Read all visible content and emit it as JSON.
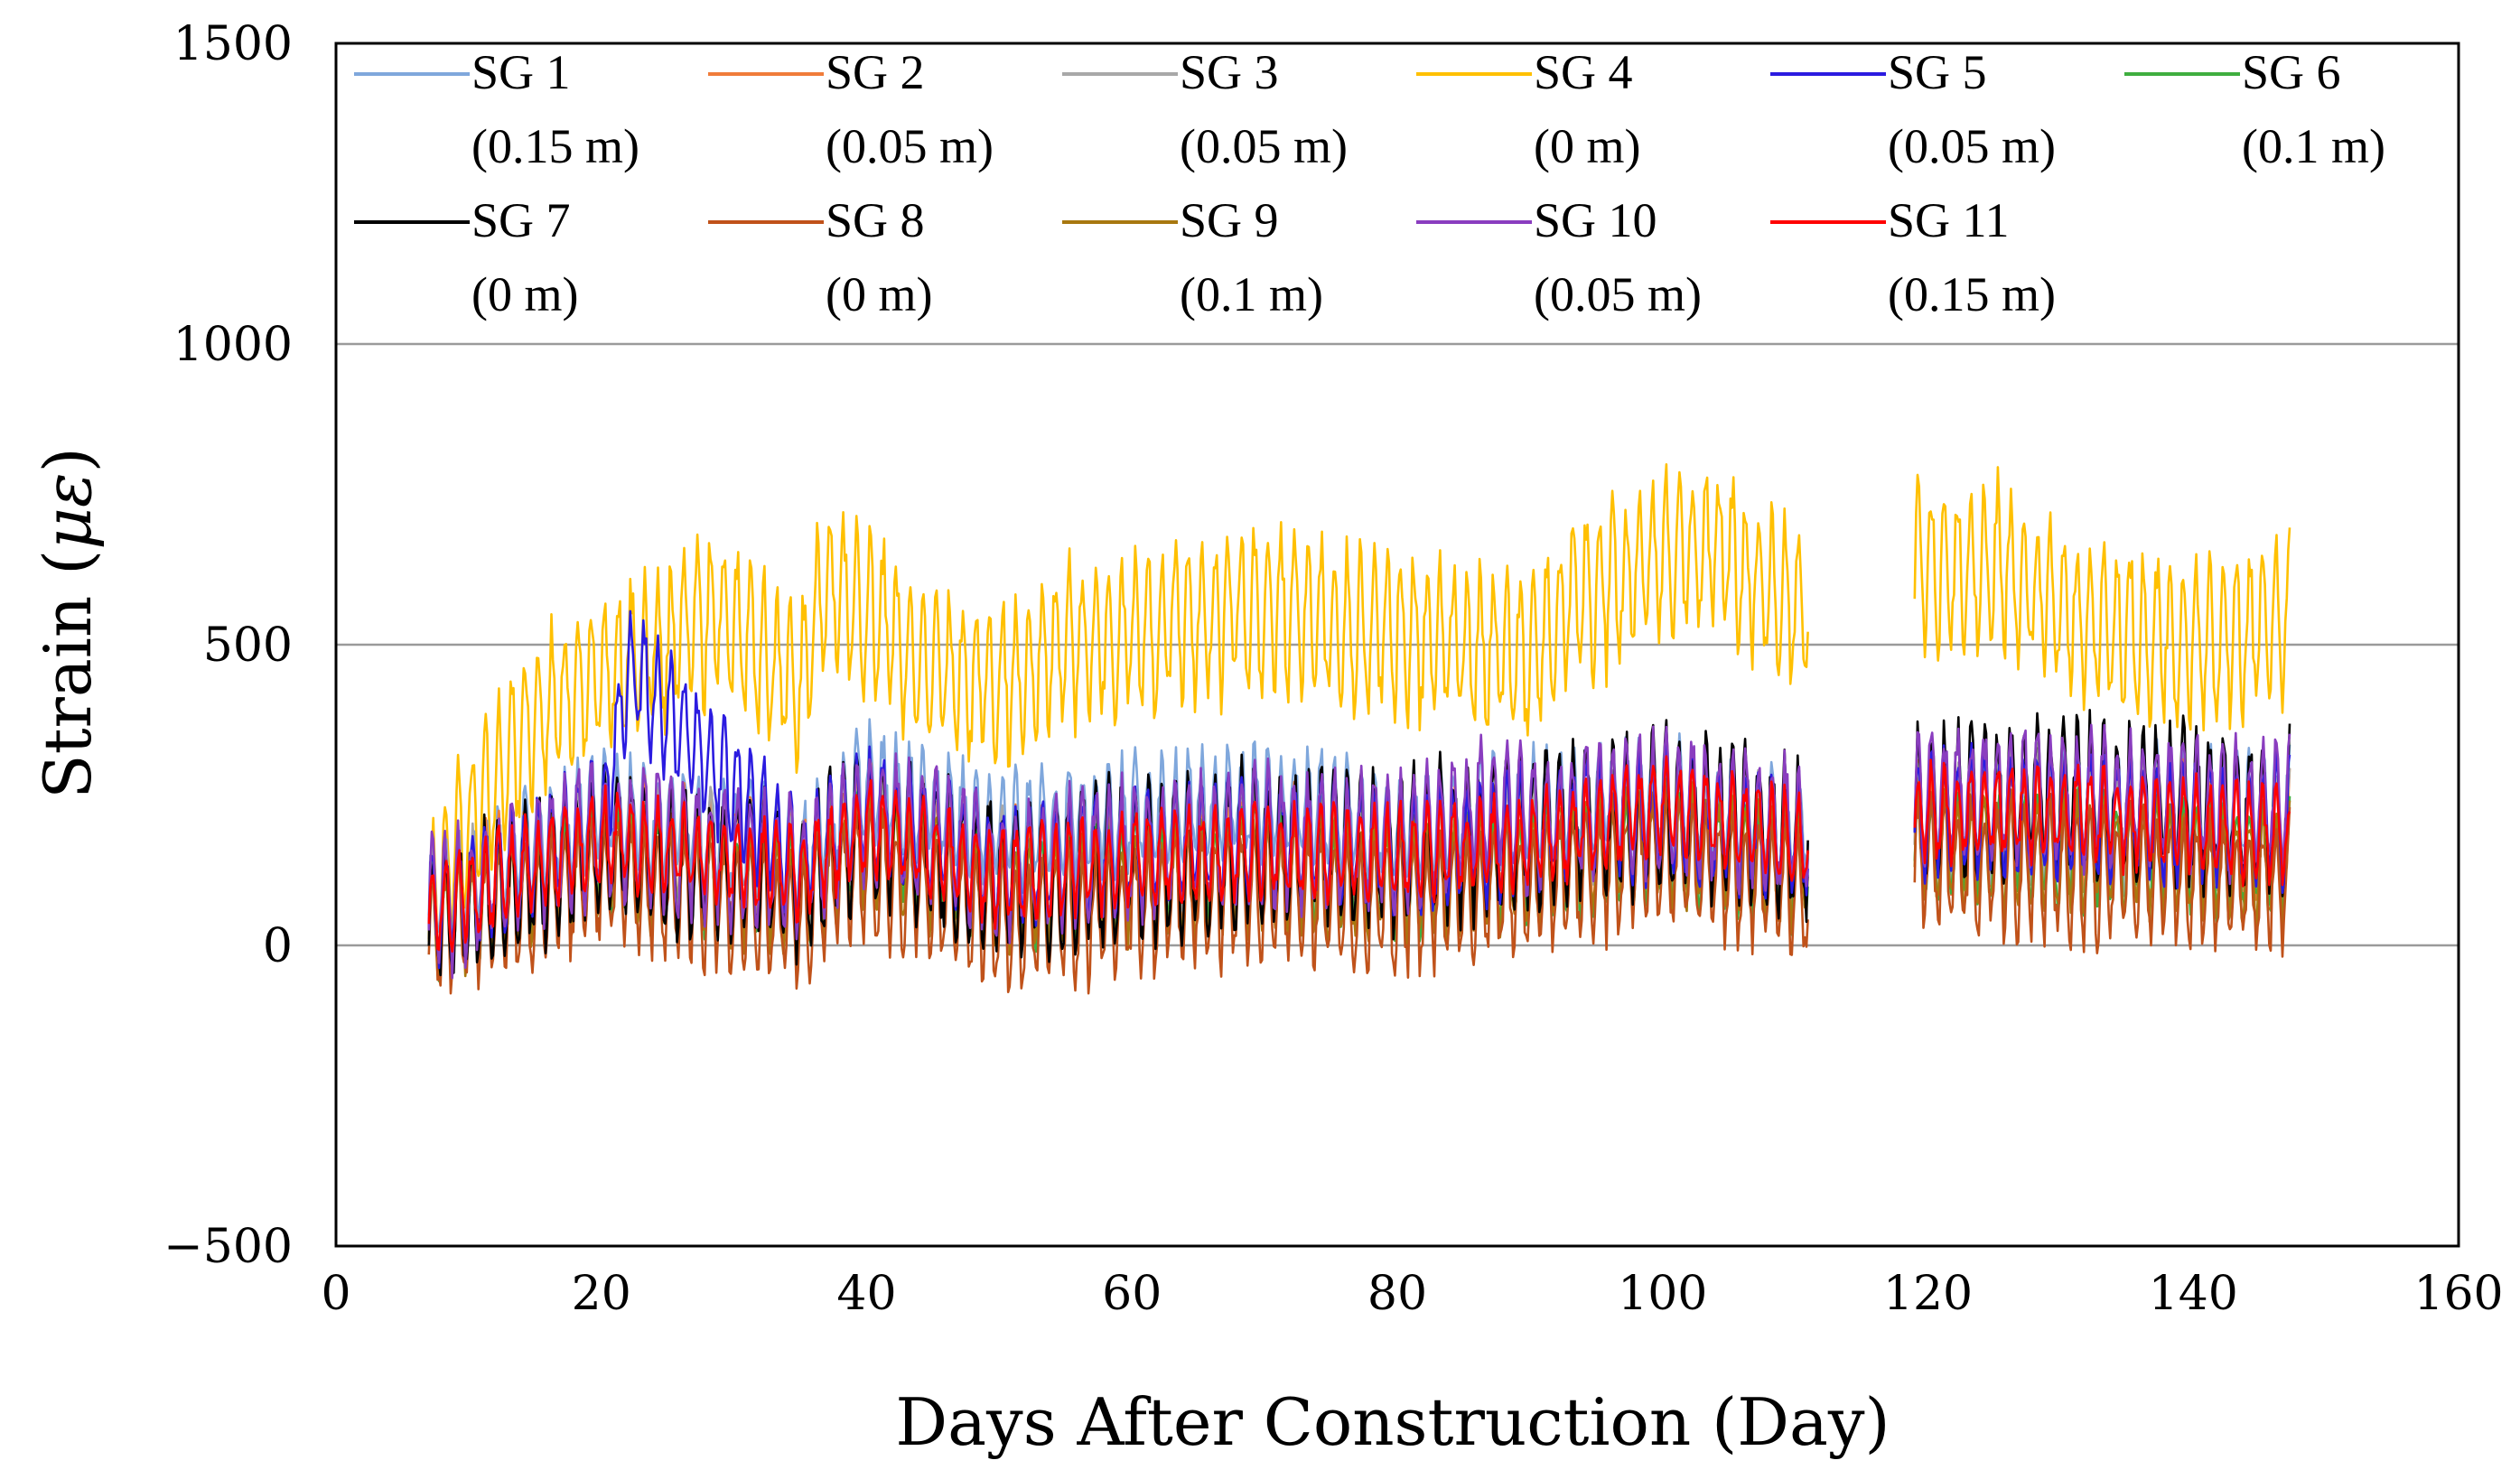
{
  "chart_data": {
    "type": "line",
    "title": "",
    "xlabel": "Days After Construction (Day)",
    "ylabel_text": "Strain (",
    "ylabel_mu": "με",
    "ylabel_close": ")",
    "xlim": [
      0,
      160
    ],
    "ylim": [
      -500,
      1500
    ],
    "xticks": [
      0,
      20,
      40,
      60,
      80,
      100,
      120,
      140,
      160
    ],
    "xtick_labels": [
      "0",
      "20",
      "40",
      "60",
      "80",
      "100",
      "120",
      "140",
      "160"
    ],
    "yticks": [
      -500,
      0,
      500,
      1000,
      1500
    ],
    "ytick_labels": [
      "−500",
      "0",
      "500",
      "1000",
      "1500"
    ],
    "gridlines_y": [
      0,
      500,
      1000
    ],
    "legend_placement": "top, inside plot, two rows",
    "data_gap": [
      111,
      119
    ],
    "series": [
      {
        "name": "SG 1",
        "depth": "(0.15 m)",
        "color": "#7fa7dc",
        "mean_range": [
          120,
          260
        ],
        "amplitude": 110,
        "values": [
          [
            7,
            80
          ],
          [
            20,
            230
          ],
          [
            35,
            150
          ],
          [
            40,
            270
          ],
          [
            50,
            190
          ],
          [
            60,
            220
          ],
          [
            70,
            240
          ],
          [
            80,
            200
          ],
          [
            90,
            230
          ],
          [
            100,
            250
          ],
          [
            111,
            200
          ],
          [
            119,
            230
          ],
          [
            130,
            240
          ],
          [
            147,
            230
          ]
        ]
      },
      {
        "name": "SG 2",
        "depth": "(0.05 m)",
        "color": "#f07c3a",
        "mean_range": [
          100,
          220
        ],
        "amplitude": 120,
        "values": [
          [
            7,
            60
          ],
          [
            20,
            180
          ],
          [
            35,
            120
          ],
          [
            40,
            200
          ],
          [
            50,
            120
          ],
          [
            60,
            140
          ],
          [
            70,
            160
          ],
          [
            80,
            150
          ],
          [
            90,
            170
          ],
          [
            100,
            200
          ],
          [
            111,
            160
          ],
          [
            119,
            200
          ],
          [
            130,
            210
          ],
          [
            147,
            180
          ]
        ]
      },
      {
        "name": "SG 3",
        "depth": "(0.05 m)",
        "color": "#a8a8a8",
        "mean_range": [
          100,
          220
        ],
        "amplitude": 120,
        "values": [
          [
            7,
            60
          ],
          [
            20,
            180
          ],
          [
            35,
            120
          ],
          [
            40,
            200
          ],
          [
            50,
            120
          ],
          [
            60,
            140
          ],
          [
            70,
            160
          ],
          [
            80,
            150
          ],
          [
            90,
            170
          ],
          [
            100,
            200
          ],
          [
            111,
            160
          ],
          [
            119,
            200
          ],
          [
            130,
            210
          ],
          [
            147,
            180
          ]
        ]
      },
      {
        "name": "SG 4",
        "depth": "(0 m)",
        "color": "#ffc000",
        "mean_range": [
          300,
          620
        ],
        "amplitude": 160,
        "values": [
          [
            7,
            50
          ],
          [
            10,
            200
          ],
          [
            15,
            380
          ],
          [
            20,
            450
          ],
          [
            25,
            500
          ],
          [
            29,
            560
          ],
          [
            32,
            480
          ],
          [
            35,
            440
          ],
          [
            37,
            600
          ],
          [
            40,
            560
          ],
          [
            45,
            450
          ],
          [
            50,
            430
          ],
          [
            55,
            500
          ],
          [
            60,
            520
          ],
          [
            65,
            540
          ],
          [
            70,
            560
          ],
          [
            75,
            540
          ],
          [
            80,
            520
          ],
          [
            85,
            500
          ],
          [
            90,
            480
          ],
          [
            93,
            560
          ],
          [
            100,
            640
          ],
          [
            104,
            660
          ],
          [
            111,
            540
          ],
          [
            119,
            620
          ],
          [
            125,
            640
          ],
          [
            130,
            560
          ],
          [
            140,
            500
          ],
          [
            147,
            540
          ]
        ]
      },
      {
        "name": "SG 5",
        "depth": "(0.05 m)",
        "color": "#2b1be0",
        "mean_range": [
          100,
          240
        ],
        "amplitude": 120,
        "values": [
          [
            7,
            60
          ],
          [
            20,
            200
          ],
          [
            22,
            460
          ],
          [
            35,
            130
          ],
          [
            40,
            230
          ],
          [
            50,
            130
          ],
          [
            60,
            160
          ],
          [
            70,
            180
          ],
          [
            80,
            160
          ],
          [
            90,
            190
          ],
          [
            100,
            220
          ],
          [
            111,
            180
          ],
          [
            119,
            220
          ],
          [
            130,
            220
          ],
          [
            147,
            200
          ]
        ]
      },
      {
        "name": "SG 6",
        "depth": "(0.1 m)",
        "color": "#3fae3f",
        "mean_range": [
          60,
          200
        ],
        "amplitude": 110,
        "values": [
          [
            7,
            40
          ],
          [
            20,
            150
          ],
          [
            35,
            90
          ],
          [
            40,
            170
          ],
          [
            50,
            90
          ],
          [
            60,
            110
          ],
          [
            70,
            130
          ],
          [
            80,
            110
          ],
          [
            90,
            130
          ],
          [
            100,
            170
          ],
          [
            111,
            120
          ],
          [
            119,
            170
          ],
          [
            130,
            160
          ],
          [
            147,
            140
          ]
        ]
      },
      {
        "name": "SG 7",
        "depth": "(0 m)",
        "color": "#000000",
        "mean_range": [
          80,
          260
        ],
        "amplitude": 150,
        "values": [
          [
            7,
            40
          ],
          [
            20,
            170
          ],
          [
            35,
            110
          ],
          [
            40,
            210
          ],
          [
            50,
            110
          ],
          [
            60,
            140
          ],
          [
            70,
            170
          ],
          [
            80,
            160
          ],
          [
            90,
            190
          ],
          [
            100,
            230
          ],
          [
            111,
            170
          ],
          [
            119,
            230
          ],
          [
            130,
            250
          ],
          [
            147,
            220
          ]
        ]
      },
      {
        "name": "SG 8",
        "depth": "(0 m)",
        "color": "#c0521a",
        "mean_range": [
          20,
          160
        ],
        "amplitude": 130,
        "values": [
          [
            7,
            20
          ],
          [
            20,
            110
          ],
          [
            35,
            50
          ],
          [
            40,
            130
          ],
          [
            50,
            30
          ],
          [
            60,
            60
          ],
          [
            70,
            90
          ],
          [
            80,
            70
          ],
          [
            90,
            100
          ],
          [
            100,
            140
          ],
          [
            111,
            80
          ],
          [
            119,
            140
          ],
          [
            130,
            120
          ],
          [
            147,
            100
          ]
        ]
      },
      {
        "name": "SG 9",
        "depth": "(0.1 m)",
        "color": "#a8780f",
        "mean_range": [
          60,
          190
        ],
        "amplitude": 110,
        "values": [
          [
            7,
            40
          ],
          [
            20,
            140
          ],
          [
            35,
            80
          ],
          [
            40,
            160
          ],
          [
            50,
            80
          ],
          [
            60,
            100
          ],
          [
            70,
            120
          ],
          [
            80,
            100
          ],
          [
            90,
            130
          ],
          [
            100,
            170
          ],
          [
            111,
            120
          ],
          [
            119,
            160
          ],
          [
            130,
            150
          ],
          [
            147,
            130
          ]
        ]
      },
      {
        "name": "SG 10",
        "depth": "(0.05 m)",
        "color": "#8a3dbf",
        "mean_range": [
          100,
          260
        ],
        "amplitude": 130,
        "values": [
          [
            7,
            60
          ],
          [
            20,
            190
          ],
          [
            35,
            130
          ],
          [
            40,
            220
          ],
          [
            50,
            130
          ],
          [
            60,
            160
          ],
          [
            70,
            180
          ],
          [
            80,
            170
          ],
          [
            88,
            250
          ],
          [
            90,
            200
          ],
          [
            100,
            240
          ],
          [
            111,
            190
          ],
          [
            119,
            240
          ],
          [
            130,
            250
          ],
          [
            147,
            220
          ]
        ]
      },
      {
        "name": "SG 11",
        "depth": "(0.15 m)",
        "color": "#ff0000",
        "mean_range": [
          100,
          240
        ],
        "amplitude": 90,
        "values": [
          [
            7,
            60
          ],
          [
            20,
            180
          ],
          [
            35,
            120
          ],
          [
            40,
            200
          ],
          [
            50,
            110
          ],
          [
            60,
            140
          ],
          [
            70,
            160
          ],
          [
            80,
            150
          ],
          [
            90,
            170
          ],
          [
            100,
            230
          ],
          [
            111,
            170
          ],
          [
            119,
            220
          ],
          [
            130,
            220
          ],
          [
            147,
            180
          ]
        ]
      }
    ]
  }
}
